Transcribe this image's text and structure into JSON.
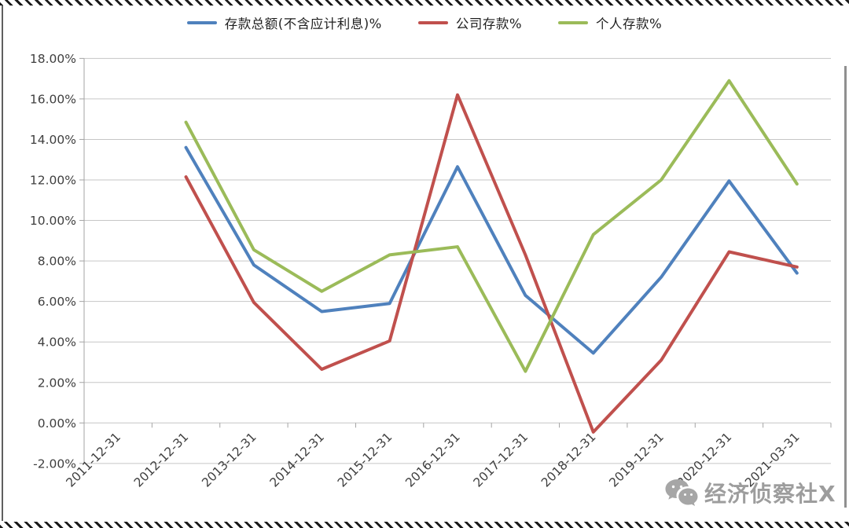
{
  "page": {
    "background": "#ffffff"
  },
  "legend": {
    "items": [
      {
        "key": "total",
        "label": "存款总额(不含应计利息)%",
        "color": "#4F81BD"
      },
      {
        "key": "corporate",
        "label": "公司存款%",
        "color": "#C0504D"
      },
      {
        "key": "personal",
        "label": "个人存款%",
        "color": "#9BBB59"
      }
    ]
  },
  "watermark": {
    "text": "经济侦察社X",
    "icon": "wechat-bubbles-icon"
  },
  "chart_data": {
    "type": "line",
    "title": "",
    "xlabel": "",
    "ylabel": "",
    "categories": [
      "2011-12-31",
      "2012-12-31",
      "2013-12-31",
      "2014-12-31",
      "2015-12-31",
      "2016-12-31",
      "2017-12-31",
      "2018-12-31",
      "2019-12-31",
      "2020-12-31",
      "2021-03-31"
    ],
    "series": [
      {
        "key": "total",
        "name": "存款总额(不含应计利息)%",
        "color": "#4F81BD",
        "values": [
          null,
          13.6,
          7.8,
          5.5,
          5.9,
          12.65,
          6.3,
          3.45,
          7.2,
          11.95,
          7.4
        ]
      },
      {
        "key": "corporate",
        "name": "公司存款%",
        "color": "#C0504D",
        "values": [
          null,
          12.15,
          5.95,
          2.65,
          4.05,
          16.2,
          8.3,
          -0.45,
          3.1,
          8.45,
          7.7
        ]
      },
      {
        "key": "personal",
        "name": "个人存款%",
        "color": "#9BBB59",
        "values": [
          null,
          14.85,
          8.55,
          6.5,
          8.3,
          8.7,
          2.55,
          9.3,
          12.0,
          16.9,
          11.8
        ]
      }
    ],
    "ylim": [
      -2,
      18
    ],
    "ytick_step": 2,
    "ytick_format": "0.00%",
    "grid": true,
    "legend_position": "top",
    "x_label_rotation": -45
  }
}
